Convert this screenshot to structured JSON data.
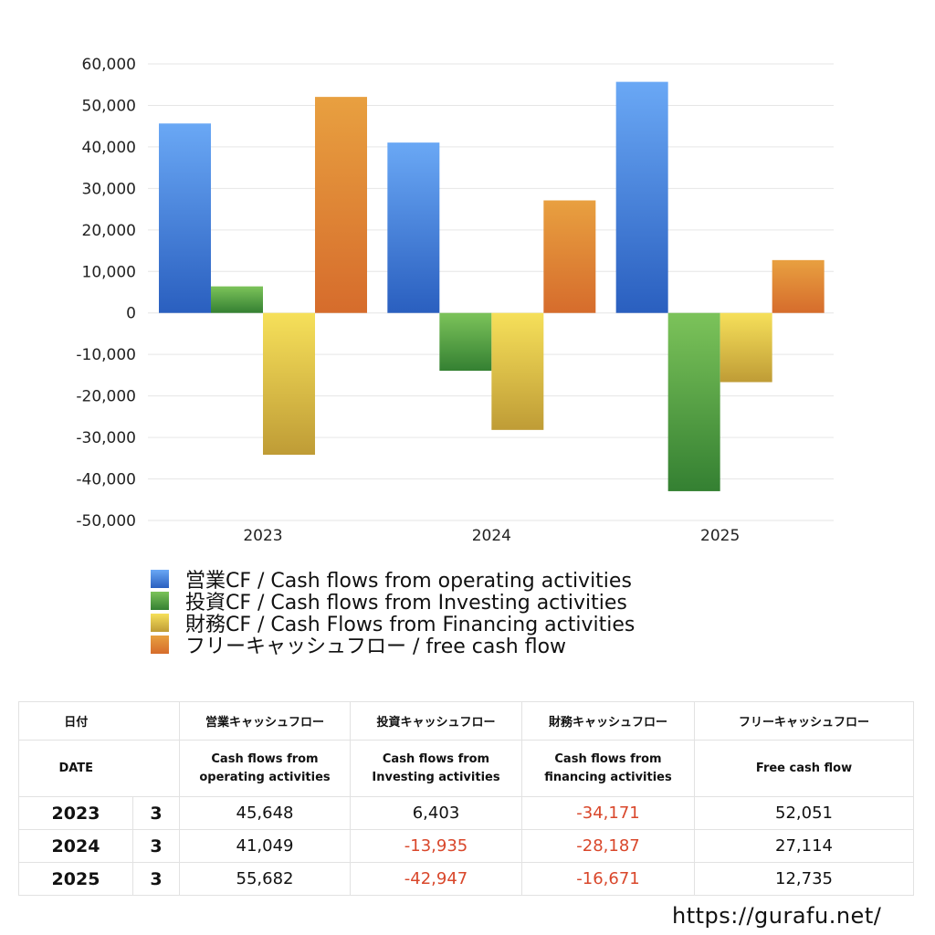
{
  "chart_data": {
    "type": "bar",
    "categories": [
      "2023",
      "2024",
      "2025"
    ],
    "series": [
      {
        "name": "営業CF / Cash flows from operating activities",
        "values": [
          45648,
          41049,
          55682
        ]
      },
      {
        "name": "投資CF / Cash flows from Investing activities",
        "values": [
          6403,
          -13935,
          -42947
        ]
      },
      {
        "name": "財務CF / Cash Flows from Financing activities",
        "values": [
          -34171,
          -28187,
          -16671
        ]
      },
      {
        "name": "フリーキャッシュフロー / free cash flow",
        "values": [
          52051,
          27114,
          12735
        ]
      }
    ],
    "y_ticks": [
      "60,000",
      "50,000",
      "40,000",
      "30,000",
      "20,000",
      "10,000",
      "0",
      "-10,000",
      "-20,000",
      "-30,000",
      "-40,000",
      "-50,000"
    ],
    "ylim": [
      -50000,
      60000
    ],
    "grid": true,
    "legend_position": "bottom-left",
    "colors": {
      "operating": [
        "#6aa8f5",
        "#2a5fbf"
      ],
      "investing": [
        "#7cc35a",
        "#348032"
      ],
      "financing": [
        "#f6e05a",
        "#bf9c36"
      ],
      "free": [
        "#e8a040",
        "#d66c2c"
      ]
    }
  },
  "table": {
    "header_jp": [
      "日付",
      "",
      "営業キャッシュフロー",
      "投資キャッシュフロー",
      "財務キャッシュフロー",
      "フリーキャッシュフロー"
    ],
    "header_en": [
      "DATE",
      "",
      "Cash flows from\noperating activities",
      "Cash flows from\nInvesting activities",
      "Cash flows from\nfinancing activities",
      "Free cash flow"
    ],
    "rows": [
      {
        "year": "2023",
        "month": "3",
        "operating": "45,648",
        "investing": "6,403",
        "financing": "-34,171",
        "free": "52,051"
      },
      {
        "year": "2024",
        "month": "3",
        "operating": "41,049",
        "investing": "-13,935",
        "financing": "-28,187",
        "free": "27,114"
      },
      {
        "year": "2025",
        "month": "3",
        "operating": "55,682",
        "investing": "-42,947",
        "financing": "-16,671",
        "free": "12,735"
      }
    ]
  },
  "footer": {
    "url": "https://gurafu.net/"
  }
}
